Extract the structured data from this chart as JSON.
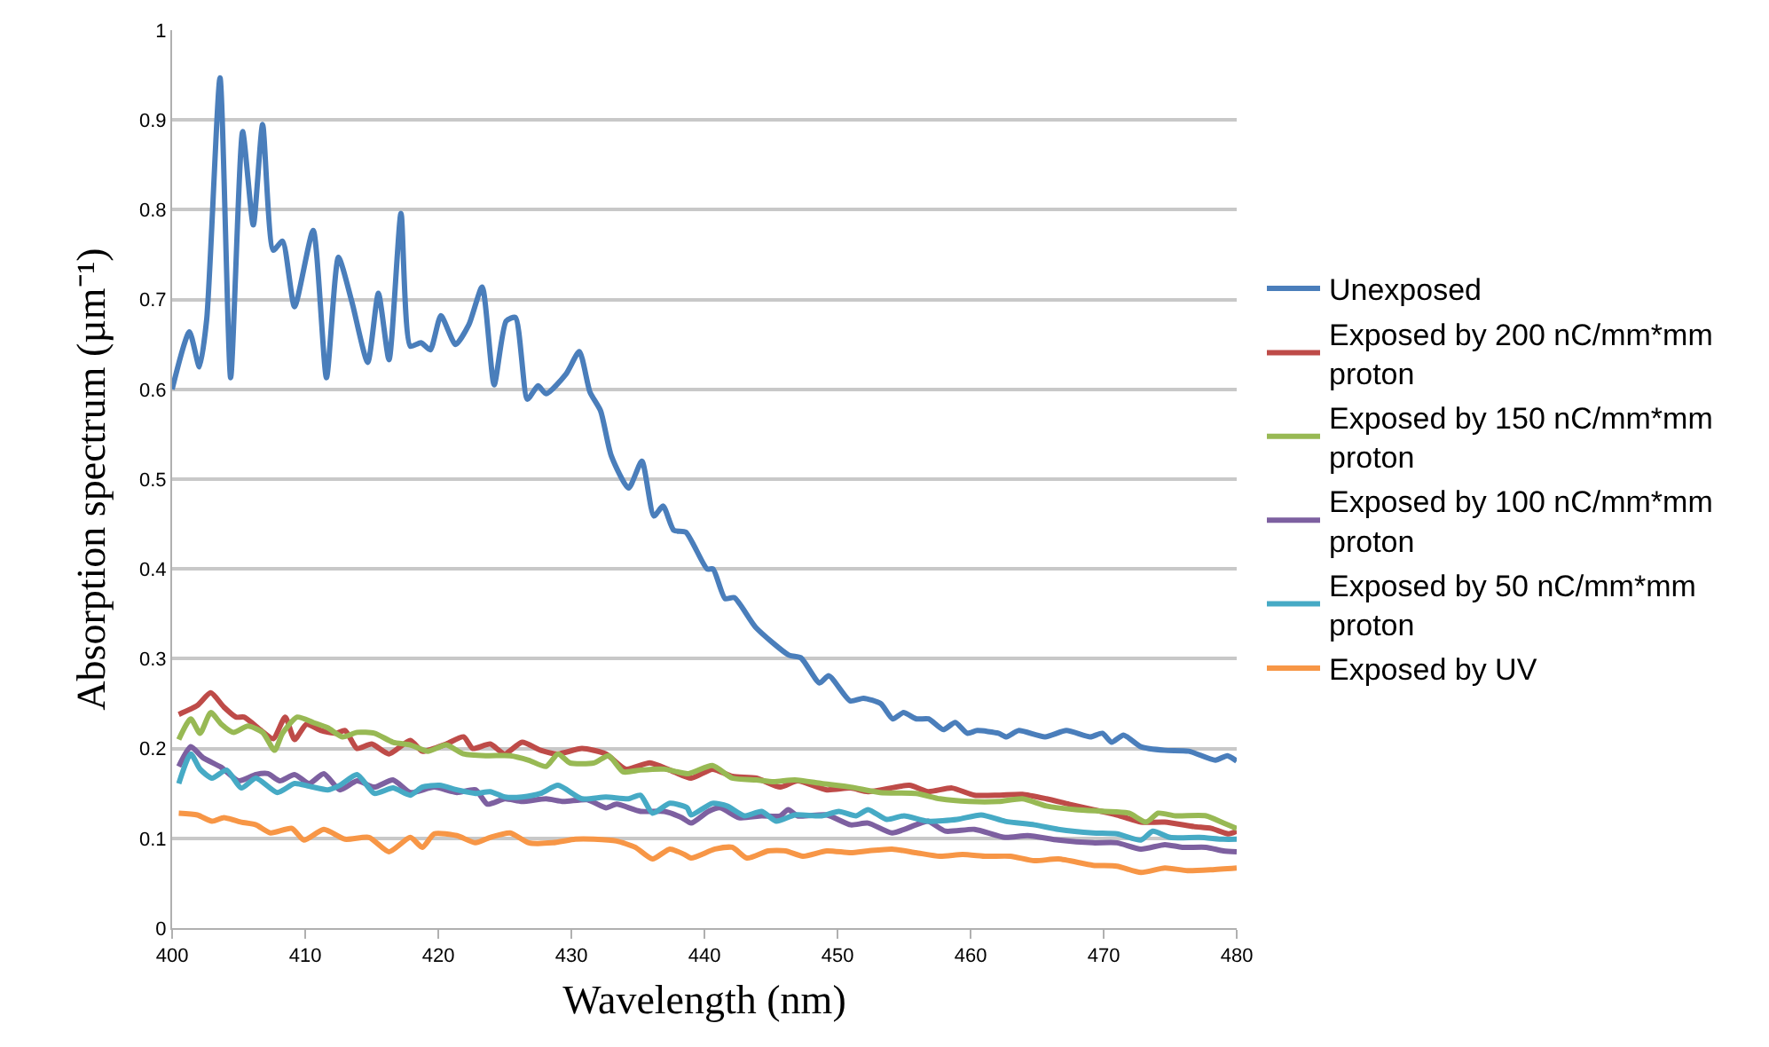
{
  "chart_data": {
    "type": "line",
    "xlabel": "Wavelength (nm)",
    "ylabel": "Absorption spectrum (µm⁻¹)",
    "xlim": [
      400,
      480
    ],
    "xticks": [
      400,
      410,
      420,
      430,
      440,
      450,
      460,
      470,
      480
    ],
    "ylim": [
      0,
      1
    ],
    "yticks": [
      0,
      {
        "value": 0.1,
        "label": "0.1"
      },
      {
        "value": 0.2,
        "label": "0.2"
      },
      {
        "value": 0.3,
        "label": "0.3"
      },
      {
        "value": 0.4,
        "label": "0.4"
      },
      {
        "value": 0.5,
        "label": "0.5"
      },
      {
        "value": 0.6,
        "label": "0.6"
      },
      {
        "value": 0.7,
        "label": "0.7"
      },
      {
        "value": 0.8,
        "label": "0.8"
      },
      {
        "value": 0.9,
        "label": "0.9"
      },
      1
    ],
    "grid": "y",
    "legend": "right",
    "series": [
      {
        "name": "Unexposed",
        "color": "#4a7ebb",
        "x": [
          400,
          401.3,
          402.05,
          402.6,
          403.6,
          404.4,
          405.3,
          406.1,
          406.8,
          407.6,
          408.3,
          409.2,
          410.6,
          411.6,
          412.5,
          413.5,
          414.7,
          415.5,
          416.3,
          417.2,
          417.9,
          418.7,
          419.4,
          420.2,
          421.3,
          422.3,
          423.3,
          424.2,
          425.1,
          425.8,
          426.7,
          427.5,
          428.1,
          429.6,
          430.6,
          431.4,
          432.2,
          433.0,
          434.3,
          435.3,
          436.2,
          436.9,
          437.7,
          438.6,
          440.2,
          440.65,
          441.55,
          442.25,
          443.85,
          446.35,
          447.25,
          448.65,
          449.35,
          450.95,
          451.95,
          453.25,
          454.15,
          454.95,
          455.95,
          456.85,
          457.95,
          458.85,
          459.75,
          460.5,
          462.1,
          462.7,
          463.6,
          465.6,
          467.2,
          469.0,
          469.9,
          470.6,
          471.5,
          472.8,
          474.6,
          476.4,
          478.4,
          479.3,
          480
        ],
        "values": [
          0.6,
          0.664,
          0.625,
          0.678,
          0.947,
          0.613,
          0.887,
          0.783,
          0.895,
          0.755,
          0.765,
          0.692,
          0.777,
          0.613,
          0.747,
          0.698,
          0.63,
          0.707,
          0.633,
          0.796,
          0.648,
          0.652,
          0.644,
          0.682,
          0.65,
          0.672,
          0.714,
          0.605,
          0.676,
          0.68,
          0.589,
          0.604,
          0.595,
          0.617,
          0.642,
          0.597,
          0.576,
          0.526,
          0.49,
          0.52,
          0.459,
          0.47,
          0.443,
          0.441,
          0.4,
          0.4,
          0.367,
          0.368,
          0.335,
          0.304,
          0.301,
          0.273,
          0.281,
          0.253,
          0.256,
          0.25,
          0.233,
          0.24,
          0.233,
          0.233,
          0.221,
          0.229,
          0.217,
          0.22,
          0.217,
          0.213,
          0.22,
          0.213,
          0.22,
          0.213,
          0.217,
          0.207,
          0.215,
          0.202,
          0.198,
          0.197,
          0.187,
          0.192,
          0.186
        ]
      },
      {
        "name": "Exposed by 200 nC/mm*mm proton",
        "color": "#be4b48",
        "x": [
          400.5,
          401.9,
          402.9,
          403.9,
          404.8,
          405.4,
          406.7,
          407.6,
          408.5,
          409.2,
          410.1,
          411.2,
          412.3,
          413.0,
          413.9,
          415.0,
          416.3,
          417.9,
          418.8,
          420.6,
          421.9,
          422.6,
          423.9,
          425.0,
          426.3,
          427.7,
          429.0,
          430.8,
          432.6,
          434.1,
          435.9,
          437.4,
          439.0,
          440.6,
          442.1,
          443.9,
          445.7,
          447.0,
          449.2,
          451.0,
          452.3,
          455.4,
          456.8,
          458.6,
          460.3,
          462.1,
          463.9,
          465.7,
          467.4,
          469.2,
          471.0,
          472.8,
          474.6,
          476.8,
          478.1,
          479.4,
          480
        ],
        "values": [
          0.238,
          0.248,
          0.262,
          0.246,
          0.235,
          0.235,
          0.22,
          0.211,
          0.235,
          0.21,
          0.227,
          0.22,
          0.217,
          0.22,
          0.2,
          0.205,
          0.194,
          0.209,
          0.197,
          0.205,
          0.213,
          0.2,
          0.205,
          0.194,
          0.207,
          0.198,
          0.194,
          0.2,
          0.194,
          0.177,
          0.184,
          0.176,
          0.167,
          0.177,
          0.169,
          0.167,
          0.157,
          0.164,
          0.154,
          0.156,
          0.152,
          0.159,
          0.152,
          0.156,
          0.148,
          0.148,
          0.149,
          0.144,
          0.138,
          0.132,
          0.126,
          0.118,
          0.118,
          0.113,
          0.111,
          0.105,
          0.108
        ]
      },
      {
        "name": "Exposed by 150 nC/mm*mm proton",
        "color": "#98b954",
        "x": [
          400.5,
          401.4,
          402.1,
          402.9,
          403.7,
          404.6,
          405.7,
          406.8,
          407.7,
          408.3,
          409.4,
          410.6,
          411.7,
          412.8,
          413.9,
          415.2,
          416.6,
          417.9,
          419.2,
          420.6,
          421.9,
          423.7,
          425.4,
          426.8,
          428.1,
          429.0,
          429.9,
          431.7,
          432.8,
          433.9,
          435.2,
          437.0,
          438.8,
          440.6,
          442.1,
          443.9,
          445.2,
          446.8,
          448.8,
          451.0,
          453.2,
          455.9,
          457.7,
          459.9,
          462.1,
          463.9,
          465.7,
          467.9,
          470.1,
          471.9,
          473.2,
          474.1,
          475.4,
          477.7,
          479.0,
          480
        ],
        "values": [
          0.21,
          0.233,
          0.217,
          0.24,
          0.227,
          0.218,
          0.225,
          0.218,
          0.198,
          0.217,
          0.235,
          0.229,
          0.223,
          0.213,
          0.218,
          0.217,
          0.207,
          0.204,
          0.197,
          0.204,
          0.194,
          0.192,
          0.192,
          0.187,
          0.18,
          0.194,
          0.184,
          0.184,
          0.192,
          0.174,
          0.176,
          0.177,
          0.172,
          0.181,
          0.167,
          0.165,
          0.163,
          0.165,
          0.161,
          0.157,
          0.151,
          0.15,
          0.144,
          0.141,
          0.141,
          0.144,
          0.136,
          0.132,
          0.13,
          0.128,
          0.118,
          0.128,
          0.125,
          0.125,
          0.117,
          0.111
        ]
      },
      {
        "name": "Exposed by 100 nC/mm*mm proton",
        "color": "#7d60a0",
        "x": [
          400.5,
          401.4,
          402.3,
          403.7,
          405.0,
          406.3,
          407.2,
          408.1,
          409.2,
          410.3,
          411.4,
          412.6,
          413.9,
          415.2,
          416.6,
          417.9,
          419.7,
          421.4,
          422.8,
          423.7,
          425.0,
          426.3,
          428.1,
          429.4,
          431.2,
          432.6,
          433.4,
          435.2,
          437.0,
          438.3,
          439.0,
          440.3,
          441.2,
          442.6,
          444.3,
          445.7,
          446.3,
          447.0,
          449.2,
          451.0,
          452.3,
          454.1,
          455.9,
          456.8,
          458.1,
          460.3,
          462.6,
          464.3,
          466.6,
          469.2,
          471.0,
          472.8,
          474.6,
          475.9,
          477.7,
          479.0,
          480
        ],
        "values": [
          0.18,
          0.202,
          0.19,
          0.179,
          0.164,
          0.171,
          0.172,
          0.164,
          0.171,
          0.161,
          0.172,
          0.154,
          0.164,
          0.157,
          0.165,
          0.151,
          0.157,
          0.151,
          0.154,
          0.138,
          0.144,
          0.141,
          0.144,
          0.141,
          0.143,
          0.134,
          0.138,
          0.13,
          0.13,
          0.123,
          0.117,
          0.13,
          0.134,
          0.123,
          0.125,
          0.125,
          0.132,
          0.125,
          0.126,
          0.115,
          0.117,
          0.106,
          0.115,
          0.119,
          0.108,
          0.11,
          0.101,
          0.103,
          0.098,
          0.095,
          0.095,
          0.088,
          0.093,
          0.09,
          0.09,
          0.086,
          0.085
        ]
      },
      {
        "name": "Exposed by 50 nC/mm*mm proton",
        "color": "#46aac5",
        "x": [
          400.5,
          401.4,
          402.1,
          403.0,
          404.1,
          405.2,
          406.3,
          407.9,
          409.2,
          410.3,
          411.7,
          412.6,
          413.9,
          415.2,
          416.6,
          417.9,
          418.8,
          420.1,
          421.4,
          422.8,
          423.9,
          425.0,
          426.3,
          427.7,
          429.0,
          430.8,
          432.6,
          434.3,
          435.2,
          436.1,
          437.4,
          438.7,
          439.0,
          440.6,
          441.7,
          443.0,
          444.3,
          445.4,
          446.8,
          448.8,
          450.1,
          451.4,
          452.3,
          453.7,
          455.0,
          456.8,
          459.0,
          460.8,
          462.6,
          464.8,
          466.6,
          469.2,
          471.0,
          472.8,
          473.7,
          475.0,
          477.2,
          479.0,
          480
        ],
        "values": [
          0.161,
          0.194,
          0.177,
          0.167,
          0.176,
          0.156,
          0.167,
          0.151,
          0.161,
          0.158,
          0.154,
          0.159,
          0.171,
          0.15,
          0.156,
          0.148,
          0.157,
          0.159,
          0.154,
          0.15,
          0.152,
          0.146,
          0.146,
          0.15,
          0.159,
          0.144,
          0.146,
          0.144,
          0.148,
          0.128,
          0.139,
          0.134,
          0.126,
          0.139,
          0.136,
          0.125,
          0.13,
          0.119,
          0.126,
          0.125,
          0.13,
          0.125,
          0.132,
          0.121,
          0.125,
          0.119,
          0.121,
          0.126,
          0.119,
          0.115,
          0.11,
          0.106,
          0.105,
          0.098,
          0.108,
          0.101,
          0.101,
          0.099,
          0.099
        ]
      },
      {
        "name": "Exposed by UV",
        "color": "#f79646",
        "x": [
          400.5,
          401.9,
          403.0,
          403.9,
          405.2,
          406.3,
          407.4,
          409.0,
          409.9,
          411.4,
          413.0,
          414.8,
          416.3,
          417.9,
          418.8,
          419.7,
          421.4,
          422.8,
          423.9,
          425.4,
          426.8,
          428.6,
          430.3,
          431.7,
          433.4,
          434.8,
          436.1,
          437.4,
          438.5,
          439.0,
          440.8,
          442.1,
          443.2,
          444.8,
          446.1,
          447.4,
          449.2,
          451.0,
          452.3,
          454.1,
          455.9,
          457.7,
          459.4,
          461.2,
          463.0,
          464.8,
          466.6,
          469.2,
          471.0,
          472.8,
          474.6,
          476.3,
          478.1,
          480
        ],
        "values": [
          0.128,
          0.126,
          0.119,
          0.123,
          0.118,
          0.115,
          0.106,
          0.111,
          0.098,
          0.11,
          0.099,
          0.101,
          0.085,
          0.101,
          0.09,
          0.105,
          0.103,
          0.095,
          0.101,
          0.106,
          0.095,
          0.095,
          0.099,
          0.099,
          0.097,
          0.09,
          0.077,
          0.088,
          0.082,
          0.078,
          0.088,
          0.09,
          0.078,
          0.086,
          0.086,
          0.08,
          0.086,
          0.084,
          0.086,
          0.088,
          0.084,
          0.08,
          0.082,
          0.08,
          0.08,
          0.075,
          0.077,
          0.07,
          0.069,
          0.062,
          0.067,
          0.064,
          0.065,
          0.067
        ]
      }
    ]
  }
}
